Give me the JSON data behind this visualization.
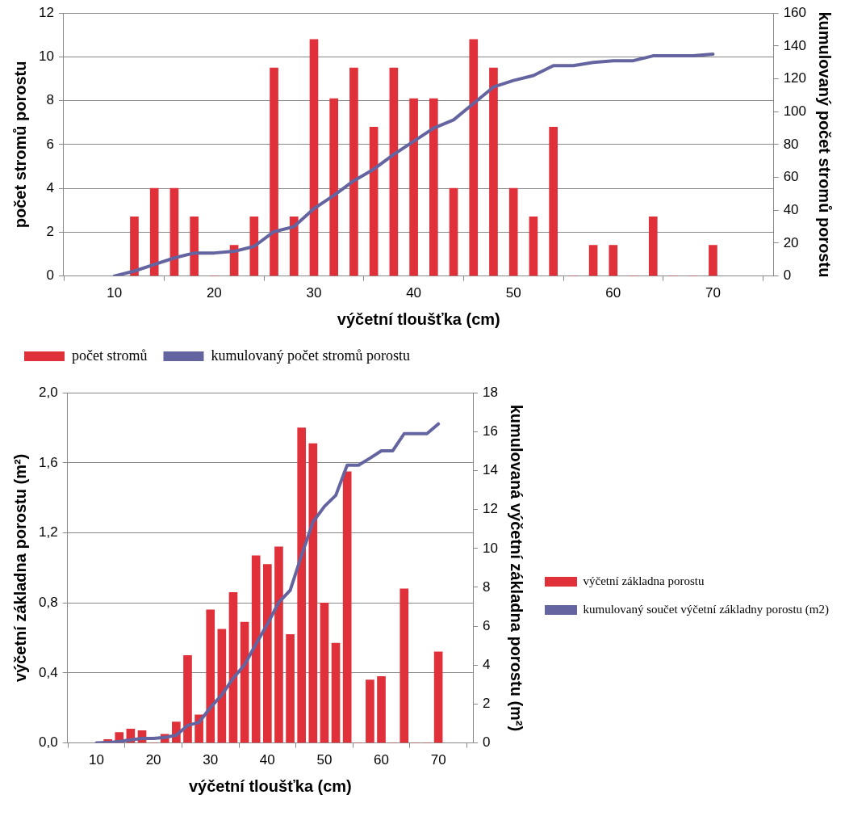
{
  "chart_data": [
    {
      "type": "bar",
      "xlabel": "výčetní tloušťka (cm)",
      "ylabel": "počet stromů porostu",
      "y2label": "kumulovaný počet stromů porostu",
      "xlim": [
        10,
        71
      ],
      "xticks": [
        10,
        20,
        30,
        40,
        50,
        60,
        70
      ],
      "ylim": [
        0,
        12
      ],
      "yticks": [
        0,
        2,
        4,
        6,
        8,
        10,
        12
      ],
      "y2lim": [
        0,
        160
      ],
      "y2ticks": [
        0,
        20,
        40,
        60,
        80,
        100,
        120,
        140,
        160
      ],
      "grid": "y",
      "legend": "bottom",
      "series": [
        {
          "name": "počet stromů",
          "color": "#e0303a",
          "x": [
            12,
            14,
            16,
            18,
            20,
            22,
            24,
            26,
            28,
            30,
            32,
            34,
            36,
            38,
            40,
            42,
            44,
            46,
            48,
            50,
            52,
            54,
            56,
            58,
            60,
            62,
            64,
            66,
            68,
            70
          ],
          "values": [
            2.7,
            4.0,
            4.0,
            2.7,
            0,
            1.4,
            2.7,
            9.5,
            2.7,
            10.8,
            8.1,
            9.5,
            6.8,
            9.5,
            8.1,
            8.1,
            4.0,
            10.8,
            9.5,
            4.0,
            2.7,
            6.8,
            0,
            1.4,
            1.4,
            0,
            2.7,
            0,
            0,
            1.4
          ]
        },
        {
          "name": "kumulovaný počet stromů porostu",
          "type": "line",
          "axis": "y2",
          "color": "#6464a0",
          "x": [
            10,
            12,
            14,
            16,
            18,
            20,
            22,
            24,
            26,
            28,
            30,
            32,
            34,
            36,
            38,
            40,
            42,
            44,
            46,
            48,
            50,
            52,
            54,
            56,
            58,
            60,
            62,
            64,
            66,
            68,
            70
          ],
          "values": [
            0,
            3,
            7,
            11,
            14,
            14,
            15,
            18,
            27,
            30,
            41,
            49,
            58,
            65,
            74,
            82,
            90,
            95,
            105,
            115,
            119,
            122,
            128,
            128,
            130,
            131,
            131,
            134,
            134,
            134,
            135
          ]
        }
      ]
    },
    {
      "type": "bar",
      "xlabel": "výčetní tloušťka (cm)",
      "ylabel": "výčetní základna porostu (m²)",
      "y2label": "kumulovaná výčetní základna porostu (m²)",
      "xlim": [
        10,
        71
      ],
      "xticks": [
        10,
        20,
        30,
        40,
        50,
        60,
        70
      ],
      "ylim": [
        0,
        2
      ],
      "yticks": [
        {
          "value": 0,
          "label": "0,0"
        },
        {
          "value": 0.4,
          "label": "0,4"
        },
        {
          "value": 0.8,
          "label": "0,8"
        },
        {
          "value": 1.2,
          "label": "1,2"
        },
        {
          "value": 1.6,
          "label": "1,6"
        },
        {
          "value": 2,
          "label": "2,0"
        }
      ],
      "y2lim": [
        0,
        18
      ],
      "y2ticks": [
        0,
        2,
        4,
        6,
        8,
        10,
        12,
        14,
        16,
        18
      ],
      "grid": "y",
      "legend": "right",
      "series": [
        {
          "name": "výčetní základna porostu",
          "color": "#e0303a",
          "x": [
            12,
            14,
            16,
            18,
            20,
            22,
            24,
            26,
            28,
            30,
            32,
            34,
            36,
            38,
            40,
            42,
            44,
            46,
            48,
            50,
            52,
            54,
            56,
            58,
            60,
            62,
            64,
            66,
            68,
            70
          ],
          "values": [
            0.02,
            0.06,
            0.08,
            0.07,
            0,
            0.05,
            0.12,
            0.5,
            0.16,
            0.76,
            0.65,
            0.86,
            0.69,
            1.07,
            1.02,
            1.12,
            0.62,
            1.8,
            1.71,
            0.8,
            0.57,
            1.55,
            0,
            0.36,
            0.38,
            0,
            0.88,
            0,
            0,
            0.52
          ]
        },
        {
          "name": "kumulovaný součet výčetní základny porostu (m2)",
          "type": "line",
          "axis": "y2",
          "color": "#6464a0",
          "x": [
            10,
            12,
            14,
            16,
            18,
            20,
            22,
            24,
            26,
            28,
            30,
            32,
            34,
            36,
            38,
            40,
            42,
            44,
            46,
            48,
            50,
            52,
            54,
            56,
            58,
            60,
            62,
            64,
            66,
            68,
            70
          ],
          "values": [
            0,
            0.02,
            0.08,
            0.16,
            0.23,
            0.23,
            0.28,
            0.4,
            0.9,
            1.06,
            1.82,
            2.47,
            3.33,
            4.02,
            5.09,
            6.11,
            7.23,
            7.85,
            9.65,
            11.36,
            12.16,
            12.73,
            14.28,
            14.28,
            14.64,
            15.02,
            15.02,
            15.9,
            15.9,
            15.9,
            16.4
          ]
        }
      ]
    }
  ]
}
